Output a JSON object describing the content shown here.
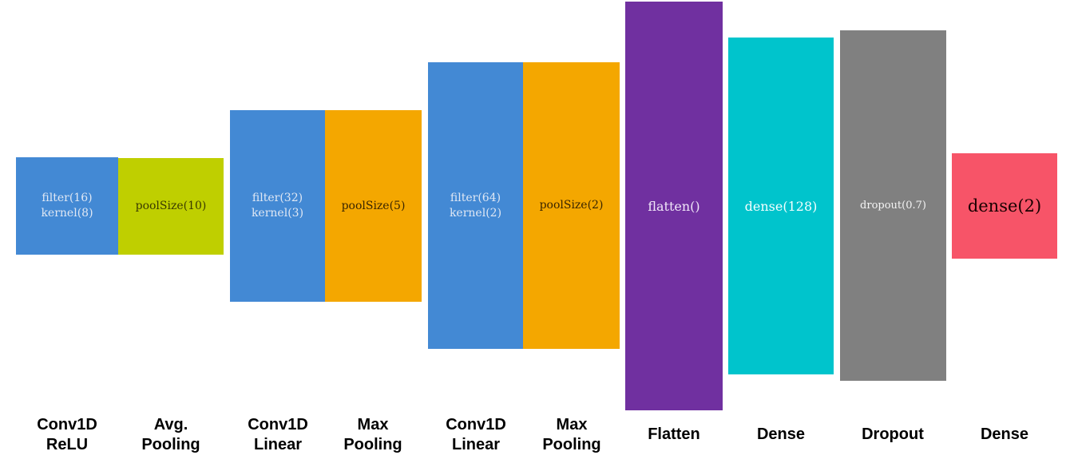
{
  "colors": {
    "conv": "#4389d4",
    "avg_pool": "#bfcf00",
    "max_pool": "#f4a700",
    "flatten": "#7030a0",
    "dense": "#00c4cc",
    "dropout": "#808080",
    "output_dense": "#f75468"
  },
  "layers": [
    {
      "lines": [
        "filter(16)",
        "kernel(8)"
      ],
      "caption": [
        "Conv1D",
        "ReLU"
      ],
      "color": "#4389d4",
      "text_color": "#e0e8f4"
    },
    {
      "lines": [
        "poolSize(10)"
      ],
      "caption": [
        "Avg.",
        "Pooling"
      ],
      "color": "#bfcf00",
      "text_color": "#3a3a00"
    },
    {
      "lines": [
        "filter(32)",
        "kernel(3)"
      ],
      "caption": [
        "Conv1D",
        "Linear"
      ],
      "color": "#4389d4",
      "text_color": "#e0e8f4"
    },
    {
      "lines": [
        "poolSize(5)"
      ],
      "caption": [
        "Max",
        "Pooling"
      ],
      "color": "#f4a700",
      "text_color": "#3a2500"
    },
    {
      "lines": [
        "filter(64)",
        "kernel(2)"
      ],
      "caption": [
        "Conv1D",
        "Linear"
      ],
      "color": "#4389d4",
      "text_color": "#e0e8f4"
    },
    {
      "lines": [
        "poolSize(2)"
      ],
      "caption": [
        "Max",
        "Pooling"
      ],
      "color": "#f4a700",
      "text_color": "#3a2500"
    },
    {
      "lines": [
        "flatten()"
      ],
      "caption": [
        "Flatten"
      ],
      "color": "#7030a0",
      "text_color": "#f0e6f8"
    },
    {
      "lines": [
        "dense(128)"
      ],
      "caption": [
        "Dense"
      ],
      "color": "#00c4cc",
      "text_color": "#f4ffff"
    },
    {
      "lines": [
        "dropout(0.7)"
      ],
      "caption": [
        "Dropout"
      ],
      "color": "#808080",
      "text_color": "#f4f4f4"
    },
    {
      "lines": [
        "dense(2)"
      ],
      "caption": [
        "Dense"
      ],
      "color": "#f75468",
      "text_color": "#1a0000"
    }
  ]
}
